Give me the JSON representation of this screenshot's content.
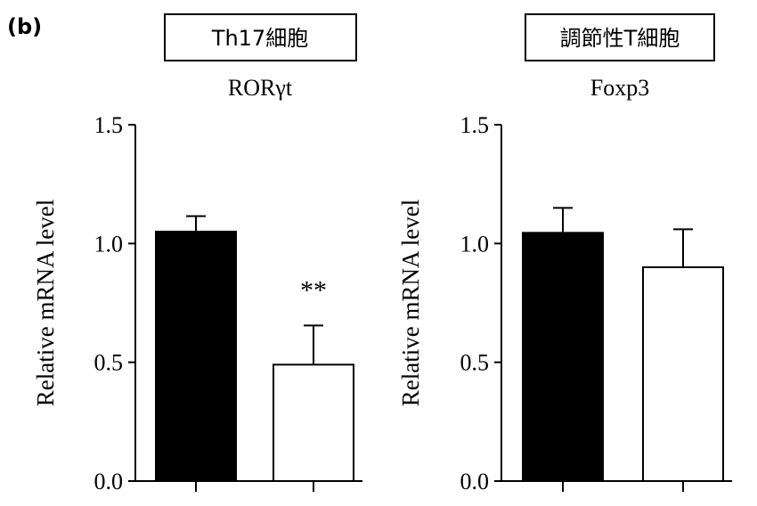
{
  "panel_label": "(b)",
  "chart_data": [
    {
      "type": "bar",
      "boxed_title": "Th17細胞",
      "title": "RORγt",
      "ylabel": "Relative mRNA level",
      "ylim": [
        0,
        1.5
      ],
      "yticks": [
        "0.0",
        "0.5",
        "1.0",
        "1.5"
      ],
      "categories": [
        "",
        ""
      ],
      "values": [
        1.05,
        0.49
      ],
      "errors": [
        0.065,
        0.165
      ],
      "bar_colors": [
        "#000000",
        "#ffffff"
      ],
      "annotations": [
        "",
        "**"
      ],
      "grid": false
    },
    {
      "type": "bar",
      "boxed_title": "調節性T細胞",
      "title": "Foxp3",
      "ylabel": "Relative mRNA level",
      "ylim": [
        0,
        1.5
      ],
      "yticks": [
        "0.0",
        "0.5",
        "1.0",
        "1.5"
      ],
      "categories": [
        "",
        ""
      ],
      "values": [
        1.045,
        0.9
      ],
      "errors": [
        0.105,
        0.16
      ],
      "bar_colors": [
        "#000000",
        "#ffffff"
      ],
      "annotations": [
        "",
        ""
      ],
      "grid": false
    }
  ]
}
